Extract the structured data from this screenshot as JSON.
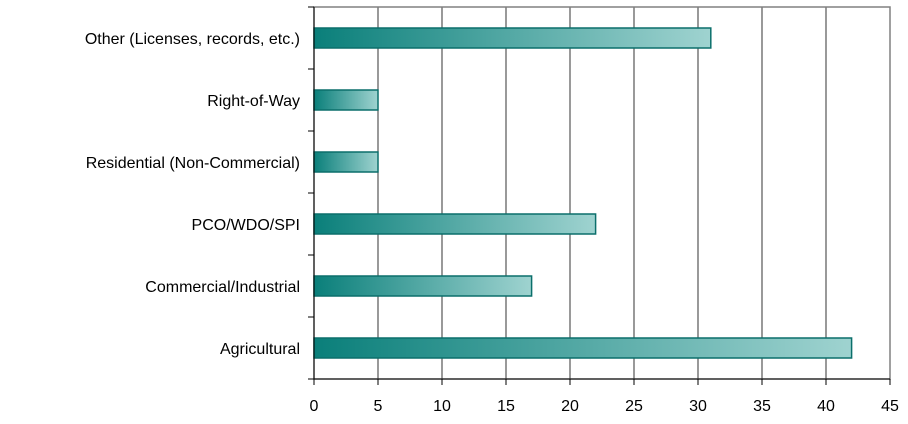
{
  "chart_data": {
    "type": "bar",
    "orientation": "horizontal",
    "title": "",
    "xlabel": "",
    "ylabel": "",
    "categories": [
      "Other (Licenses, records, etc.)",
      "Right-of-Way",
      "Residential (Non-Commercial)",
      "PCO/WDO/SPI",
      "Commercial/Industrial",
      "Agricultural"
    ],
    "values": [
      31,
      5,
      5,
      22,
      17,
      42
    ],
    "xlim": [
      0,
      45
    ],
    "xticks": [
      "0",
      "5",
      "10",
      "15",
      "20",
      "25",
      "30",
      "35",
      "40",
      "45"
    ],
    "grid": "vertical",
    "legend": "none",
    "colors": {
      "bar_start": "#0a7f7a",
      "bar_end": "#9fd3d0",
      "bar_stroke": "#0b6f6b",
      "grid": "#000000",
      "frame": "#808080"
    }
  }
}
